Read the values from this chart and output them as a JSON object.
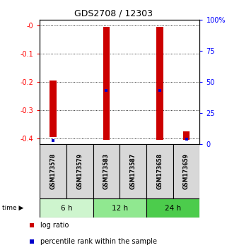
{
  "title": "GDS2708 / 12303",
  "samples": [
    "GSM173578",
    "GSM173579",
    "GSM173583",
    "GSM173587",
    "GSM173658",
    "GSM173659"
  ],
  "log_ratio_bottom": [
    -0.395,
    0.0,
    -0.405,
    0.0,
    -0.405,
    -0.405
  ],
  "log_ratio_top": [
    -0.195,
    0.0,
    -0.005,
    0.0,
    -0.005,
    -0.375
  ],
  "percentile_rank": [
    2.5,
    0.0,
    43.0,
    0.0,
    43.0,
    3.5
  ],
  "ylim": [
    -0.42,
    0.02
  ],
  "yticks_left": [
    0.0,
    -0.1,
    -0.2,
    -0.3,
    -0.4
  ],
  "ytick_labels_left": [
    "-0",
    "-0.1",
    "-0.2",
    "-0.3",
    "-0.4"
  ],
  "perc_ticks": [
    0,
    25,
    50,
    75,
    100
  ],
  "perc_labels": [
    "0",
    "25",
    "50",
    "75",
    "100%"
  ],
  "time_groups": [
    {
      "label": "6 h",
      "cols": [
        0,
        1
      ],
      "color": "#cef5ce"
    },
    {
      "label": "12 h",
      "cols": [
        2,
        3
      ],
      "color": "#90e890"
    },
    {
      "label": "24 h",
      "cols": [
        4,
        5
      ],
      "color": "#4ccc4c"
    }
  ],
  "bar_color": "#cc0000",
  "marker_color": "#0000cc",
  "bg_color": "#ffffff",
  "sample_box_color": "#d8d8d8",
  "bar_width": 0.25
}
